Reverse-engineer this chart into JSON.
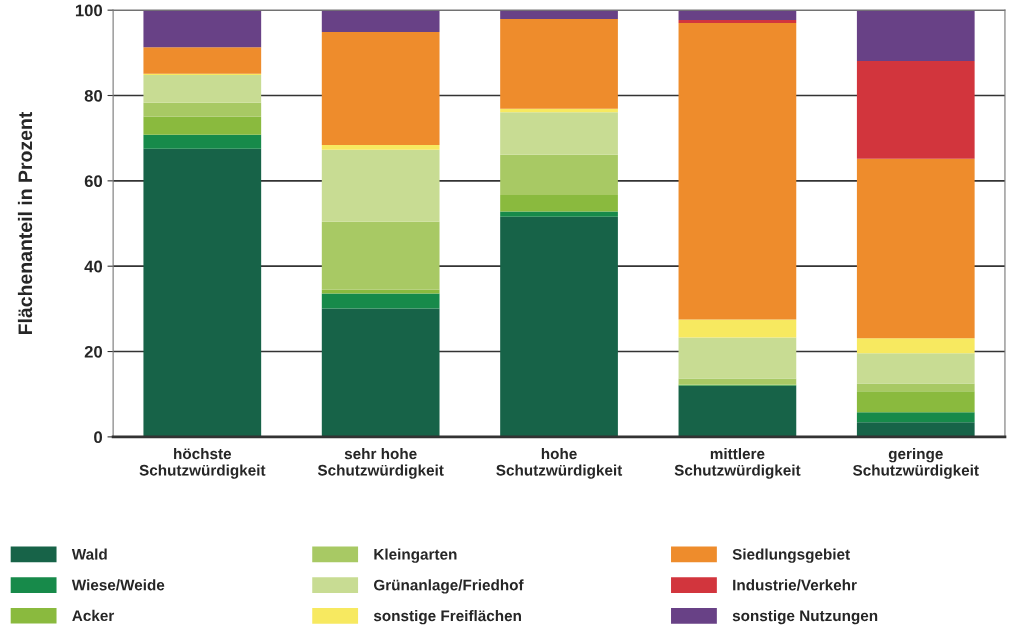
{
  "chart_data": {
    "type": "bar",
    "stacked": true,
    "ylabel": "Flächenanteil in Prozent",
    "categories": [
      "höchste\nSchutzwürdigkeit",
      "sehr hohe\nSchutzwürdigkeit",
      "hohe\nSchutzwürdigkeit",
      "mittlere\nSchutzwürdigkeit",
      "geringe\nSchutzwürdigkeit"
    ],
    "series": [
      {
        "name": "Wald",
        "color": "#176348",
        "values": [
          67.5,
          30.1,
          51.6,
          11.9,
          3.4
        ]
      },
      {
        "name": "Wiese/Weide",
        "color": "#178a4a",
        "values": [
          3.3,
          3.5,
          1.2,
          0.2,
          2.4
        ]
      },
      {
        "name": "Acker",
        "color": "#8aba3e",
        "values": [
          4.2,
          0.9,
          3.9,
          0.2,
          4.9
        ]
      },
      {
        "name": "Kleingarten",
        "color": "#a8c964",
        "values": [
          3.3,
          15.9,
          9.4,
          1.4,
          1.8
        ]
      },
      {
        "name": "Grünanlage/Friedhof",
        "color": "#c8dc93",
        "values": [
          6.5,
          16.9,
          10.0,
          9.6,
          7.1
        ]
      },
      {
        "name": "sonstige Freiflächen",
        "color": "#f7e960",
        "values": [
          0.3,
          1.1,
          0.8,
          4.2,
          3.5
        ]
      },
      {
        "name": "Siedlungsgebiet",
        "color": "#ee8c2c",
        "values": [
          6.2,
          26.5,
          21.0,
          69.5,
          42.1
        ]
      },
      {
        "name": "Industrie/Verkehr",
        "color": "#d2353d",
        "values": [
          0,
          0,
          0,
          0.7,
          22.9
        ]
      },
      {
        "name": "sonstige Nutzungen",
        "color": "#684186",
        "values": [
          8.7,
          5.1,
          2.1,
          2.3,
          11.9
        ]
      }
    ],
    "ylim": [
      0,
      100
    ],
    "yticks": [
      0,
      20,
      40,
      60,
      80,
      100
    ],
    "grid": "y",
    "legend": "bottom"
  }
}
